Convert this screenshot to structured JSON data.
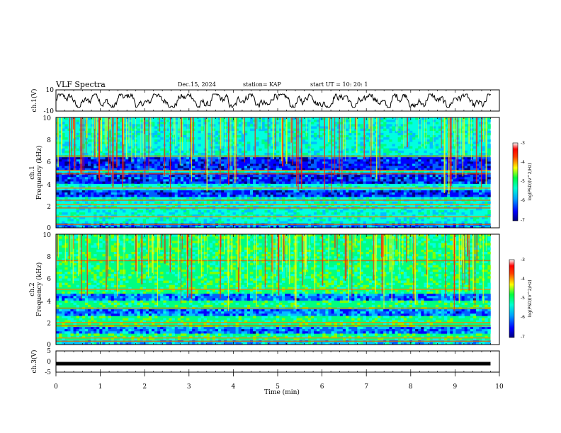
{
  "header": {
    "title": "VLF Spectra",
    "date": "Dec.15, 2024",
    "station": "station= KAP",
    "start": "start  UT =   10: 20: 1"
  },
  "colors": {
    "palette": [
      "#000080",
      "#0000ff",
      "#0060ff",
      "#00c0ff",
      "#00ffe0",
      "#00ff80",
      "#80ff00",
      "#ffff00",
      "#ff8000",
      "#ff0000",
      "#ffffff"
    ],
    "line": "#000000"
  },
  "chart_data": [
    {
      "type": "line",
      "name": "ch1-waveform",
      "ylabel": "ch.1(V)",
      "ylim": [
        -10,
        10
      ],
      "yticks": [
        "10",
        "-10"
      ],
      "xlim": [
        0,
        10
      ],
      "description_values": "noisy waveform oscillating approx between -6 and 6 V over 0-9.8 min"
    },
    {
      "type": "heatmap",
      "name": "ch1-spectrogram",
      "ylabel_line1": "ch.1",
      "ylabel_line2": "Frequency (kHz)",
      "ylim": [
        0,
        10
      ],
      "yticks": [
        "0",
        "2",
        "4",
        "6",
        "8",
        "10"
      ],
      "xlim": [
        0,
        10
      ],
      "data_xmax": 9.8,
      "base_level": -5.2,
      "blue_bands_khz": [
        [
          5.3,
          6.3
        ],
        [
          4.1,
          4.9
        ],
        [
          2.8,
          3.4
        ]
      ],
      "red_lines_khz": [
        6.5,
        5.2,
        4.9,
        3.6,
        2.5,
        2.1,
        1.8,
        1.0,
        0.3
      ],
      "colorbar": {
        "label": "log(PSD)(V^2/Hz)",
        "min": -7,
        "max": -3,
        "ticks": [
          "-3",
          "-4",
          "-5",
          "-6",
          "-7"
        ]
      }
    },
    {
      "type": "heatmap",
      "name": "ch2-spectrogram",
      "ylabel_line1": "ch.2",
      "ylabel_line2": "Frequency (kHz)",
      "ylim": [
        0,
        10
      ],
      "yticks": [
        "0",
        "2",
        "4",
        "6",
        "8",
        "10"
      ],
      "xlim": [
        0,
        10
      ],
      "data_xmax": 9.8,
      "base_level": -4.8,
      "blue_bands_khz": [
        [
          4.1,
          4.6
        ],
        [
          2.7,
          3.1
        ],
        [
          1.0,
          1.6
        ]
      ],
      "red_lines_khz": [
        7.6,
        5.0,
        3.3,
        2.0,
        1.7,
        0.6,
        0.3
      ],
      "colorbar": {
        "label": "log(PSD)(V^2/Hz)",
        "min": -7,
        "max": -3,
        "ticks": [
          "-3",
          "-4",
          "-5",
          "-6",
          "-7"
        ]
      }
    },
    {
      "type": "line",
      "name": "ch3-trace",
      "ylabel": "ch.3(V)",
      "ylim": [
        -5,
        5
      ],
      "yticks": [
        "5",
        "0",
        "-5"
      ],
      "xlim": [
        0,
        10
      ],
      "xlabel": "Time (min)",
      "xticks": [
        "0",
        "1",
        "2",
        "3",
        "4",
        "5",
        "6",
        "7",
        "8",
        "9",
        "10"
      ],
      "constant_value": -1,
      "description_values": "thick flat trace near -1 V from 0 to 9.8 min"
    }
  ]
}
